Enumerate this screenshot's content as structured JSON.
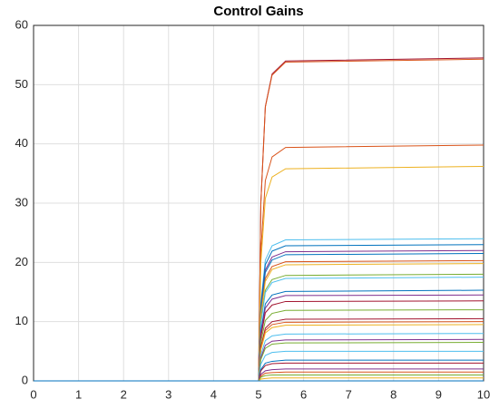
{
  "chart_data": {
    "type": "line",
    "title": "Control Gains",
    "x": [
      0,
      5,
      5.05,
      5.15,
      5.3,
      5.6,
      10
    ],
    "xlim": [
      0,
      10
    ],
    "xticks": [
      0,
      1,
      2,
      3,
      4,
      5,
      6,
      7,
      8,
      9,
      10
    ],
    "ylim": [
      0,
      60
    ],
    "yticks": [
      0,
      10,
      20,
      30,
      40,
      50,
      60
    ],
    "grid": true,
    "series": [
      {
        "color": "#a2142f",
        "values": [
          0,
          0,
          30.0,
          46.3,
          51.8,
          54.0,
          54.5
        ]
      },
      {
        "color": "#d95319",
        "values": [
          0,
          0,
          29.9,
          46.2,
          51.6,
          53.8,
          54.3
        ]
      },
      {
        "color": "#d95319",
        "values": [
          0,
          0,
          21.9,
          33.8,
          37.8,
          39.4,
          39.8
        ]
      },
      {
        "color": "#edb120",
        "values": [
          0,
          0,
          19.9,
          30.8,
          34.4,
          35.8,
          36.2
        ]
      },
      {
        "color": "#4dbeee",
        "values": [
          0,
          0,
          13.2,
          20.4,
          22.8,
          23.8,
          24
        ]
      },
      {
        "color": "#0072bd",
        "values": [
          0,
          0,
          12.7,
          19.6,
          21.9,
          22.8,
          23
        ]
      },
      {
        "color": "#7e2f8e",
        "values": [
          0,
          0,
          12.1,
          18.7,
          20.9,
          21.8,
          22
        ]
      },
      {
        "color": "#0072bd",
        "values": [
          0,
          0,
          11.8,
          18.3,
          20.4,
          21.3,
          21.5
        ]
      },
      {
        "color": "#d95319",
        "values": [
          0,
          0,
          11.2,
          17.3,
          19.3,
          20.1,
          20.3
        ]
      },
      {
        "color": "#edb120",
        "values": [
          0,
          0,
          10.9,
          16.8,
          18.8,
          19.6,
          19.8
        ]
      },
      {
        "color": "#77ac30",
        "values": [
          0,
          0,
          9.9,
          15.3,
          17.1,
          17.8,
          18
        ]
      },
      {
        "color": "#4dbeee",
        "values": [
          0,
          0,
          9.6,
          14.9,
          16.6,
          17.3,
          17.5
        ]
      },
      {
        "color": "#0072bd",
        "values": [
          0,
          0,
          8.4,
          13.0,
          14.5,
          15.1,
          15.3
        ]
      },
      {
        "color": "#7e2f8e",
        "values": [
          0,
          0,
          8.0,
          12.3,
          13.8,
          14.4,
          14.5
        ]
      },
      {
        "color": "#a2142f",
        "values": [
          0,
          0,
          7.4,
          11.5,
          12.8,
          13.4,
          13.5
        ]
      },
      {
        "color": "#77ac30",
        "values": [
          0,
          0,
          6.6,
          10.2,
          11.4,
          11.9,
          12
        ]
      },
      {
        "color": "#a2142f",
        "values": [
          0,
          0,
          5.8,
          8.9,
          10.0,
          10.4,
          10.5
        ]
      },
      {
        "color": "#d95319",
        "values": [
          0,
          0,
          5.5,
          8.5,
          9.5,
          9.9,
          10
        ]
      },
      {
        "color": "#edb120",
        "values": [
          0,
          0,
          5.2,
          8.1,
          9.0,
          9.4,
          9.5
        ]
      },
      {
        "color": "#4dbeee",
        "values": [
          0,
          0,
          4.4,
          6.8,
          7.6,
          7.9,
          8
        ]
      },
      {
        "color": "#7e2f8e",
        "values": [
          0,
          0,
          3.9,
          6.0,
          6.7,
          6.9,
          7
        ]
      },
      {
        "color": "#77ac30",
        "values": [
          0,
          0,
          3.6,
          5.5,
          6.2,
          6.4,
          6.5
        ]
      },
      {
        "color": "#4dbeee",
        "values": [
          0,
          0,
          2.8,
          4.3,
          4.8,
          5.0,
          5
        ]
      },
      {
        "color": "#0072bd",
        "values": [
          0,
          0,
          1.9,
          3.0,
          3.3,
          3.5,
          3.5
        ]
      },
      {
        "color": "#a2142f",
        "values": [
          0,
          0,
          1.7,
          2.6,
          2.9,
          3.0,
          3
        ]
      },
      {
        "color": "#7e2f8e",
        "values": [
          0,
          0,
          1.1,
          1.7,
          1.9,
          2.0,
          2
        ]
      },
      {
        "color": "#d95319",
        "values": [
          0,
          0,
          0.8,
          1.3,
          1.4,
          1.5,
          1.5
        ]
      },
      {
        "color": "#77ac30",
        "values": [
          0,
          0,
          0.6,
          0.9,
          1.0,
          1.0,
          1
        ]
      },
      {
        "color": "#edb120",
        "values": [
          0,
          0,
          0.3,
          0.4,
          0.5,
          0.5,
          0.5
        ]
      },
      {
        "color": "#0072bd",
        "values": [
          0,
          0,
          0,
          0,
          0,
          0,
          0
        ]
      }
    ]
  }
}
